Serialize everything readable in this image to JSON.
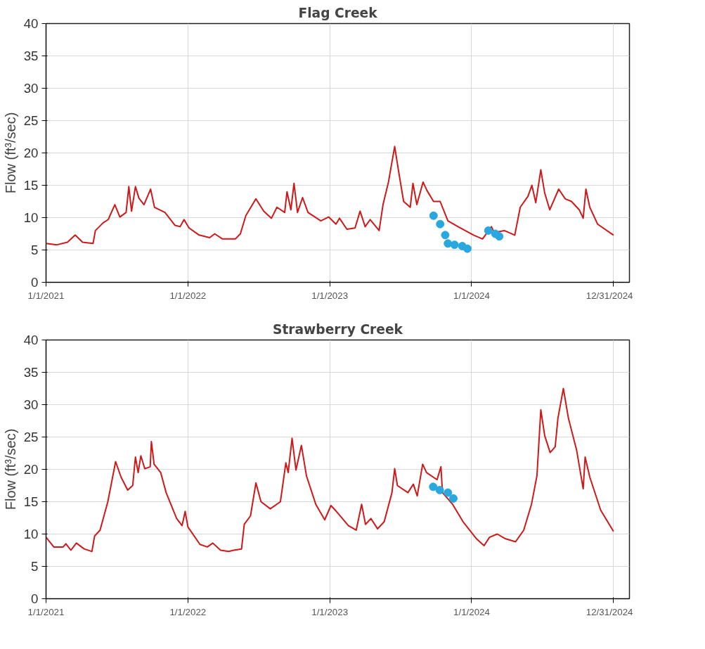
{
  "chart_data": [
    {
      "type": "line",
      "title": "Flag Creek",
      "ylabel": "Flow (ft³/sec)",
      "xlim": [
        "2021-01-01",
        "2025-02-10"
      ],
      "ylim": [
        0,
        40
      ],
      "yticks": [
        0,
        5,
        10,
        15,
        20,
        25,
        30,
        35,
        40
      ],
      "xticks": [
        {
          "value": "2021-01-01",
          "label": "1/1/2021"
        },
        {
          "value": "2022-01-01",
          "label": "1/1/2022"
        },
        {
          "value": "2023-01-01",
          "label": "1/1/2023"
        },
        {
          "value": "2024-01-01",
          "label": "1/1/2024"
        },
        {
          "value": "2024-12-31",
          "label": "12/31/2024"
        }
      ],
      "grid": true,
      "series": [
        {
          "color": "#d01818",
          "marker": "none",
          "x": [
            "2021-01-01",
            "2021-01-29",
            "2021-02-25",
            "2021-03-17",
            "2021-04-05",
            "2021-05-02",
            "2021-05-08",
            "2021-05-28",
            "2021-06-10",
            "2021-06-27",
            "2021-07-10",
            "2021-07-26",
            "2021-08-02",
            "2021-08-09",
            "2021-08-19",
            "2021-08-28",
            "2021-09-10",
            "2021-09-27",
            "2021-10-07",
            "2021-11-03",
            "2021-11-29",
            "2021-12-12",
            "2021-12-22",
            "2022-01-04",
            "2022-01-30",
            "2022-02-26",
            "2022-03-11",
            "2022-03-31",
            "2022-04-14",
            "2022-05-03",
            "2022-05-16",
            "2022-05-30",
            "2022-06-25",
            "2022-07-15",
            "2022-08-04",
            "2022-08-18",
            "2022-09-07",
            "2022-09-13",
            "2022-09-23",
            "2022-10-01",
            "2022-10-10",
            "2022-10-23",
            "2022-11-06",
            "2022-12-09",
            "2022-12-29",
            "2023-01-17",
            "2023-01-26",
            "2023-02-14",
            "2023-03-07",
            "2023-03-20",
            "2023-04-02",
            "2023-04-15",
            "2023-05-08",
            "2023-05-18",
            "2023-06-01",
            "2023-06-17",
            "2023-06-27",
            "2023-07-10",
            "2023-07-27",
            "2023-08-03",
            "2023-08-13",
            "2023-08-29",
            "2023-09-08",
            "2023-09-25",
            "2023-10-12",
            "2023-11-01",
            "2023-11-27",
            "2024-01-06",
            "2024-01-29",
            "2024-02-21",
            "2024-02-28",
            "2024-03-25",
            "2024-04-21",
            "2024-05-05",
            "2024-05-25",
            "2024-06-04",
            "2024-06-14",
            "2024-06-27",
            "2024-07-07",
            "2024-07-20",
            "2024-08-12",
            "2024-08-29",
            "2024-09-14",
            "2024-10-04",
            "2024-10-14",
            "2024-10-21",
            "2024-10-31",
            "2024-11-20",
            "2024-12-31"
          ],
          "values": [
            6.0,
            5.8,
            6.2,
            7.3,
            6.2,
            6.0,
            8.0,
            9.2,
            9.7,
            12,
            10.1,
            10.8,
            14.8,
            11,
            14.8,
            13,
            12,
            14.4,
            11.6,
            10.8,
            8.8,
            8.6,
            9.7,
            8.4,
            7.3,
            6.9,
            7.5,
            6.7,
            6.7,
            6.7,
            7.5,
            10.3,
            12.9,
            11,
            9.9,
            11.6,
            10.8,
            14,
            11.2,
            15.3,
            10.8,
            13.1,
            10.8,
            9.5,
            10.1,
            9.0,
            9.9,
            8.2,
            8.4,
            11,
            8.6,
            9.7,
            8.0,
            12,
            15.5,
            21,
            17.2,
            12.5,
            11.6,
            15.3,
            12,
            15.5,
            14.2,
            12.5,
            12.5,
            9.5,
            8.6,
            7.3,
            6.7,
            8.6,
            7.7,
            8.0,
            7.3,
            11.6,
            13.3,
            15,
            12.3,
            17.4,
            13.8,
            11.2,
            14.4,
            12.9,
            12.5,
            11.2,
            9.9,
            14.4,
            11.6,
            9.0,
            7.3
          ]
        },
        {
          "type": "scatter",
          "color": "#29a8e0",
          "marker": "circle",
          "x": [
            "2023-09-25",
            "2023-10-12",
            "2023-10-25",
            "2023-11-01",
            "2023-11-18",
            "2023-12-08",
            "2023-12-21",
            "2024-02-13",
            "2024-03-02",
            "2024-03-12"
          ],
          "values": [
            10.3,
            9.0,
            7.3,
            6.0,
            5.8,
            5.6,
            5.2,
            8.0,
            7.5,
            7.1
          ]
        }
      ]
    },
    {
      "type": "line",
      "title": "Strawberry Creek",
      "ylabel": "Flow (ft³/sec)",
      "xlim": [
        "2021-01-01",
        "2025-02-10"
      ],
      "ylim": [
        0,
        40
      ],
      "yticks": [
        0,
        5,
        10,
        15,
        20,
        25,
        30,
        35,
        40
      ],
      "xticks": [
        {
          "value": "2021-01-01",
          "label": "1/1/2021"
        },
        {
          "value": "2022-01-01",
          "label": "1/1/2022"
        },
        {
          "value": "2023-01-01",
          "label": "1/1/2023"
        },
        {
          "value": "2024-01-01",
          "label": "1/1/2024"
        },
        {
          "value": "2024-12-31",
          "label": "12/31/2024"
        }
      ],
      "grid": true,
      "series": [
        {
          "color": "#d01818",
          "marker": "none",
          "x": [
            "2021-01-01",
            "2021-01-21",
            "2021-02-14",
            "2021-02-21",
            "2021-03-06",
            "2021-03-20",
            "2021-04-09",
            "2021-04-29",
            "2021-05-06",
            "2021-05-20",
            "2021-06-09",
            "2021-06-29",
            "2021-07-13",
            "2021-07-30",
            "2021-08-12",
            "2021-08-19",
            "2021-08-26",
            "2021-09-02",
            "2021-09-12",
            "2021-09-26",
            "2021-09-29",
            "2021-10-06",
            "2021-10-23",
            "2021-11-06",
            "2021-12-03",
            "2021-12-17",
            "2021-12-25",
            "2022-01-01",
            "2022-02-01",
            "2022-02-20",
            "2022-03-06",
            "2022-03-26",
            "2022-04-16",
            "2022-04-29",
            "2022-05-19",
            "2022-05-26",
            "2022-06-11",
            "2022-06-25",
            "2022-07-08",
            "2022-08-01",
            "2022-08-27",
            "2022-09-10",
            "2022-09-16",
            "2022-09-26",
            "2022-10-06",
            "2022-10-20",
            "2022-11-02",
            "2022-11-26",
            "2022-12-19",
            "2023-01-04",
            "2023-01-18",
            "2023-02-18",
            "2023-03-10",
            "2023-03-24",
            "2023-04-03",
            "2023-04-17",
            "2023-05-04",
            "2023-05-21",
            "2023-06-10",
            "2023-06-17",
            "2023-06-24",
            "2023-07-21",
            "2023-08-04",
            "2023-08-14",
            "2023-08-28",
            "2023-09-07",
            "2023-10-04",
            "2023-10-14",
            "2023-10-18",
            "2023-11-13",
            "2023-12-10",
            "2024-01-13",
            "2024-02-02",
            "2024-02-16",
            "2024-03-07",
            "2024-03-27",
            "2024-04-23",
            "2024-05-14",
            "2024-06-03",
            "2024-06-17",
            "2024-06-27",
            "2024-07-07",
            "2024-07-21",
            "2024-08-03",
            "2024-08-10",
            "2024-08-24",
            "2024-09-06",
            "2024-09-27",
            "2024-10-14",
            "2024-10-19",
            "2024-10-31",
            "2024-11-28",
            "2024-12-31"
          ],
          "values": [
            9.5,
            8.0,
            8.0,
            8.5,
            7.5,
            8.6,
            7.7,
            7.3,
            9.7,
            10.6,
            15,
            21.2,
            18.8,
            16.8,
            17.5,
            21.9,
            19.5,
            22.1,
            20.1,
            20.4,
            24.3,
            20.8,
            19.5,
            16.4,
            12.4,
            11.3,
            13.5,
            11.1,
            8.4,
            8.0,
            8.6,
            7.5,
            7.3,
            7.5,
            7.7,
            11.5,
            12.8,
            17.9,
            15,
            13.9,
            15,
            21,
            19.5,
            24.8,
            19.9,
            23.7,
            19,
            14.6,
            12.2,
            14.4,
            13.5,
            11.3,
            10.6,
            14.6,
            11.5,
            12.4,
            10.8,
            11.9,
            16.4,
            20.1,
            17.5,
            16.4,
            17.7,
            15.9,
            20.8,
            19.5,
            18.4,
            20.4,
            16.4,
            14.6,
            11.9,
            9.3,
            8.2,
            9.5,
            10.0,
            9.3,
            8.8,
            10.6,
            14.6,
            19,
            29.2,
            25.2,
            22.6,
            23.5,
            27.9,
            32.5,
            27.9,
            23,
            17,
            21.9,
            18.8,
            13.7,
            10.4
          ]
        },
        {
          "type": "scatter",
          "color": "#29a8e0",
          "marker": "circle",
          "x": [
            "2023-09-24",
            "2023-10-11",
            "2023-11-01",
            "2023-11-15"
          ],
          "values": [
            17.3,
            16.8,
            16.4,
            15.5
          ]
        }
      ]
    }
  ]
}
